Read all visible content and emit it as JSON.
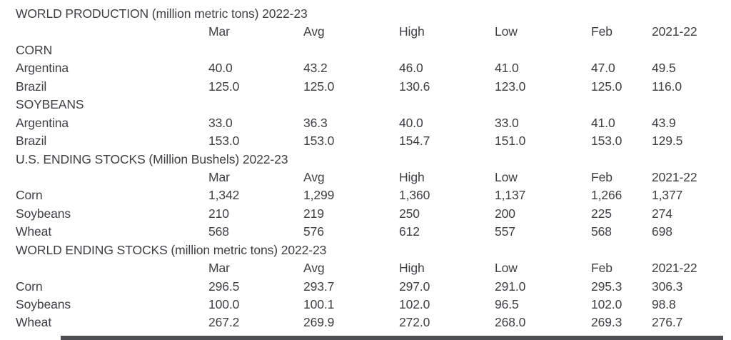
{
  "page": {
    "background": "#ffffff",
    "text_color": "#3f3f44",
    "cutoff_bar_color": "#4e4f52"
  },
  "columns": [
    "Mar",
    "Avg",
    "High",
    "Low",
    "Feb",
    "2021-22"
  ],
  "sections": [
    {
      "title": "WORLD PRODUCTION (million metric tons) 2022-23",
      "groups": [
        {
          "label": "CORN",
          "rows": [
            {
              "label": "Argentina",
              "values": [
                "40.0",
                "43.2",
                "46.0",
                "41.0",
                "47.0",
                "49.5"
              ]
            },
            {
              "label": "Brazil",
              "values": [
                "125.0",
                "125.0",
                "130.6",
                "123.0",
                "125.0",
                "116.0"
              ]
            }
          ]
        },
        {
          "label": "SOYBEANS",
          "rows": [
            {
              "label": "Argentina",
              "values": [
                "33.0",
                "36.3",
                "40.0",
                "33.0",
                "41.0",
                "43.9"
              ]
            },
            {
              "label": "Brazil",
              "values": [
                "153.0",
                "153.0",
                "154.7",
                "151.0",
                "153.0",
                "129.5"
              ]
            }
          ]
        }
      ]
    },
    {
      "title": "U.S. ENDING STOCKS (Million Bushels) 2022-23",
      "groups": [
        {
          "label": "",
          "rows": [
            {
              "label": "Corn",
              "values": [
                "1,342",
                "1,299",
                "1,360",
                "1,137",
                "1,266",
                "1,377"
              ]
            },
            {
              "label": "Soybeans",
              "values": [
                "210",
                "219",
                "250",
                "200",
                "225",
                "274"
              ]
            },
            {
              "label": "Wheat",
              "values": [
                "568",
                "576",
                "612",
                "557",
                "568",
                "698"
              ]
            }
          ]
        }
      ]
    },
    {
      "title": "WORLD ENDING STOCKS (million metric tons) 2022-23",
      "groups": [
        {
          "label": "",
          "rows": [
            {
              "label": "Corn",
              "values": [
                "296.5",
                "293.7",
                "297.0",
                "291.0",
                "295.3",
                "306.3"
              ]
            },
            {
              "label": "Soybeans",
              "values": [
                "100.0",
                "100.1",
                "102.0",
                "96.5",
                "102.0",
                "98.8"
              ]
            },
            {
              "label": "Wheat",
              "values": [
                "267.2",
                "269.9",
                "272.0",
                "268.0",
                "269.3",
                "276.7"
              ]
            }
          ]
        }
      ]
    }
  ]
}
